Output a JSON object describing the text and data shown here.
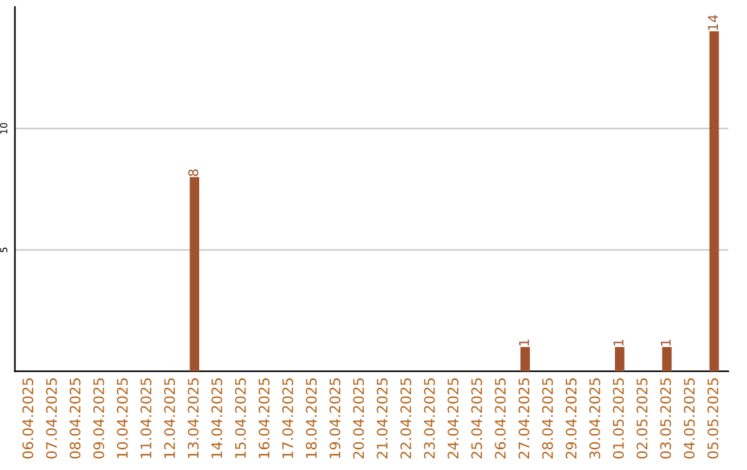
{
  "chart_data": {
    "type": "bar",
    "categories": [
      "06.04.2025",
      "07.04.2025",
      "08.04.2025",
      "09.04.2025",
      "10.04.2025",
      "11.04.2025",
      "12.04.2025",
      "13.04.2025",
      "14.04.2025",
      "15.04.2025",
      "16.04.2025",
      "17.04.2025",
      "18.04.2025",
      "19.04.2025",
      "20.04.2025",
      "21.04.2025",
      "22.04.2025",
      "23.04.2025",
      "24.04.2025",
      "25.04.2025",
      "26.04.2025",
      "27.04.2025",
      "28.04.2025",
      "29.04.2025",
      "30.04.2025",
      "01.05.2025",
      "02.05.2025",
      "03.05.2025",
      "04.05.2025",
      "05.05.2025"
    ],
    "values": [
      0,
      0,
      0,
      0,
      0,
      0,
      0,
      8,
      0,
      0,
      0,
      0,
      0,
      0,
      0,
      0,
      0,
      0,
      0,
      0,
      0,
      1,
      0,
      0,
      0,
      1,
      0,
      1,
      0,
      14
    ],
    "value_labels": [
      null,
      null,
      null,
      null,
      null,
      null,
      null,
      "8",
      null,
      null,
      null,
      null,
      null,
      null,
      null,
      null,
      null,
      null,
      null,
      null,
      null,
      "1",
      null,
      null,
      null,
      "1",
      null,
      "1",
      null,
      "14"
    ],
    "color": "#a0522d",
    "ylim": [
      0,
      15
    ],
    "yticks": [
      5,
      10
    ],
    "grid": "y"
  }
}
